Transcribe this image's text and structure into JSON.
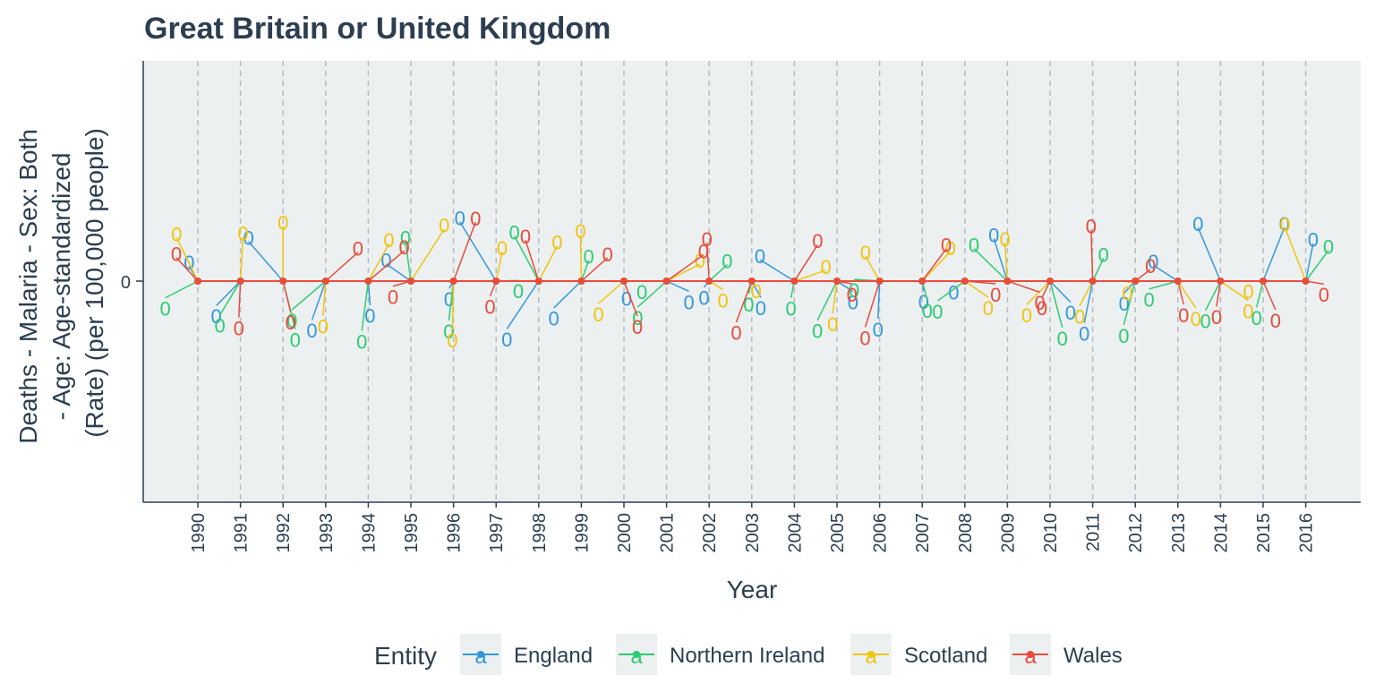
{
  "chart_data": {
    "type": "line",
    "title": "Great Britain or United Kingdom",
    "xlabel": "Year",
    "ylabel_lines": [
      "Deaths - Malaria - Sex: Both",
      "- Age: Age-standardized",
      "(Rate) (per 100,000 people)"
    ],
    "x": [
      "1990",
      "1991",
      "1992",
      "1993",
      "1994",
      "1995",
      "1996",
      "1997",
      "1998",
      "1999",
      "2000",
      "2001",
      "2002",
      "2003",
      "2004",
      "2005",
      "2006",
      "2007",
      "2008",
      "2009",
      "2010",
      "2011",
      "2012",
      "2013",
      "2014",
      "2015",
      "2016"
    ],
    "y_ticks": [
      "0"
    ],
    "ylim": [
      -1,
      1
    ],
    "grid": "vertical dashed",
    "legend_title": "Entity",
    "legend_position": "bottom",
    "legend_glyph": "a",
    "series": [
      {
        "name": "England",
        "color": "#3498db",
        "values": [
          0,
          0,
          0,
          0,
          0,
          0,
          0,
          0,
          0,
          0,
          0,
          0,
          0,
          0,
          0,
          0,
          0,
          0,
          0,
          0,
          0,
          0,
          0,
          0,
          0,
          0,
          0
        ],
        "point_labels": [
          "0",
          "0",
          "0",
          "0",
          "0",
          "0",
          "0",
          "0",
          "0",
          "0",
          "0",
          "0",
          "0",
          "0",
          "0",
          "0",
          "0",
          "0",
          "0",
          "0",
          "0",
          "0",
          "0",
          "0",
          "0",
          "0",
          "0"
        ]
      },
      {
        "name": "Northern Ireland",
        "color": "#2ecc71",
        "values": [
          0,
          0,
          0,
          0,
          0,
          0,
          0,
          0,
          0,
          0,
          0,
          0,
          0,
          0,
          0,
          0,
          0,
          0,
          0,
          0,
          0,
          0,
          0,
          0,
          0,
          0,
          0
        ],
        "point_labels": [
          "0",
          "0",
          "0",
          "0",
          "0",
          "0",
          "0",
          "0",
          "0",
          "0",
          "0",
          "0",
          "0",
          "0",
          "0",
          "0",
          "0",
          "0",
          "0",
          "0",
          "0",
          "0",
          "0",
          "0",
          "0",
          "0",
          "0"
        ]
      },
      {
        "name": "Scotland",
        "color": "#f1c40f",
        "values": [
          0,
          0,
          0,
          0,
          0,
          0,
          0,
          0,
          0,
          0,
          0,
          0,
          0,
          0,
          0,
          0,
          0,
          0,
          0,
          0,
          0,
          0,
          0,
          0,
          0,
          0,
          0
        ],
        "point_labels": [
          "0",
          "0",
          "0",
          "0",
          "0",
          "0",
          "0",
          "0",
          "0",
          "0",
          "0",
          "0",
          "0",
          "0",
          "0",
          "0",
          "0",
          "0",
          "0",
          "0",
          "0",
          "0",
          "0",
          "0",
          "0",
          "0",
          "0"
        ]
      },
      {
        "name": "Wales",
        "color": "#e74c3c",
        "values": [
          0,
          0,
          0,
          0,
          0,
          0,
          0,
          0,
          0,
          0,
          0,
          0,
          0,
          0,
          0,
          0,
          0,
          0,
          0,
          0,
          0,
          0,
          0,
          0,
          0,
          0,
          0
        ],
        "point_labels": [
          "0",
          "0",
          "0",
          "0",
          "0",
          "0",
          "0",
          "0",
          "0",
          "0",
          "0",
          "0",
          "0",
          "0",
          "0",
          "0",
          "0",
          "0",
          "0",
          "0",
          "0",
          "0",
          "0",
          "0",
          "0",
          "0",
          "0"
        ]
      }
    ]
  }
}
